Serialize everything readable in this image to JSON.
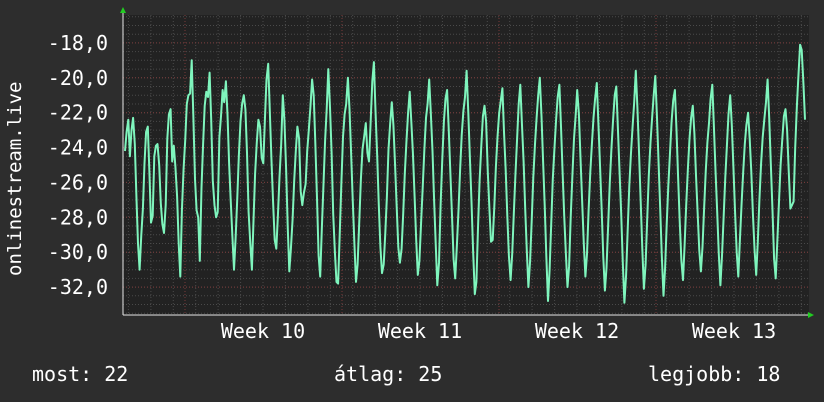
{
  "chart_data": {
    "type": "line",
    "ylabel": "onlinestream.live",
    "ylim": [
      -33.6,
      -16.4
    ],
    "yticks": [
      -18,
      -20,
      -22,
      -24,
      -26,
      -28,
      -30,
      -32
    ],
    "ytick_labels": [
      "-18,0",
      "-20,0",
      "-22,0",
      "-24,0",
      "-26,0",
      "-28,0",
      "-30,0",
      "-32,0"
    ],
    "xticks": [
      "Week 10",
      "Week 11",
      "Week 12",
      "Week 13"
    ],
    "grid": true,
    "series": [
      {
        "color": "#7ff5bd",
        "values": [
          -24.2,
          -23.1,
          -22.4,
          -24.5,
          -23.0,
          -22.3,
          -23.8,
          -26.8,
          -29.5,
          -31.0,
          -29.0,
          -27.5,
          -24.9,
          -23.1,
          -22.8,
          -25.4,
          -28.3,
          -27.9,
          -24.5,
          -23.9,
          -23.8,
          -25.0,
          -27.2,
          -28.4,
          -28.9,
          -27.3,
          -23.5,
          -22.1,
          -21.8,
          -24.8,
          -23.9,
          -25.1,
          -26.8,
          -29.5,
          -31.4,
          -27.6,
          -25.2,
          -23.6,
          -21.5,
          -21.0,
          -20.9,
          -19.0,
          -22.1,
          -25.8,
          -27.6,
          -28.0,
          -30.5,
          -26.3,
          -23.8,
          -21.6,
          -20.8,
          -21.1,
          -19.7,
          -22.4,
          -25.9,
          -27.3,
          -28.0,
          -27.7,
          -23.4,
          -22.2,
          -20.7,
          -21.4,
          -20.2,
          -22.1,
          -24.9,
          -27.0,
          -29.1,
          -31.0,
          -29.2,
          -27.0,
          -24.4,
          -22.5,
          -21.5,
          -21.0,
          -21.8,
          -24.3,
          -27.7,
          -29.5,
          -31.0,
          -28.2,
          -25.5,
          -23.7,
          -22.4,
          -22.8,
          -24.6,
          -24.9,
          -22.4,
          -20.1,
          -19.2,
          -21.9,
          -24.6,
          -27.0,
          -29.3,
          -29.8,
          -27.9,
          -25.7,
          -23.8,
          -21.0,
          -22.4,
          -25.2,
          -28.5,
          -31.1,
          -29.8,
          -28.1,
          -25.9,
          -24.2,
          -22.8,
          -23.5,
          -26.5,
          -27.3,
          -26.6,
          -26.1,
          -24.2,
          -23.0,
          -21.6,
          -20.1,
          -21.0,
          -23.7,
          -26.9,
          -30.2,
          -31.4,
          -28.7,
          -26.1,
          -23.6,
          -21.8,
          -19.5,
          -21.7,
          -24.3,
          -27.8,
          -30.0,
          -31.7,
          -31.8,
          -29.0,
          -26.0,
          -23.4,
          -22.1,
          -21.5,
          -20.0,
          -21.8,
          -24.3,
          -27.1,
          -29.5,
          -31.7,
          -30.7,
          -28.2,
          -25.8,
          -24.1,
          -23.4,
          -22.6,
          -24.3,
          -24.8,
          -22.6,
          -20.2,
          -19.1,
          -21.9,
          -24.5,
          -27.3,
          -29.7,
          -31.2,
          -30.7,
          -28.9,
          -26.8,
          -24.1,
          -22.6,
          -21.4,
          -22.7,
          -24.9,
          -27.4,
          -29.7,
          -30.6,
          -29.8,
          -27.8,
          -25.5,
          -23.7,
          -22.0,
          -20.8,
          -22.5,
          -24.3,
          -26.8,
          -29.3,
          -31.3,
          -30.5,
          -28.3,
          -26.3,
          -24.2,
          -22.3,
          -21.5,
          -20.1,
          -22.0,
          -24.2,
          -27.0,
          -29.5,
          -31.9,
          -30.6,
          -27.3,
          -24.8,
          -22.5,
          -21.2,
          -20.7,
          -22.9,
          -25.5,
          -27.9,
          -30.4,
          -31.5,
          -29.6,
          -27.6,
          -25.3,
          -23.3,
          -21.9,
          -21.1,
          -19.6,
          -22.0,
          -24.6,
          -27.1,
          -29.9,
          -32.4,
          -31.7,
          -28.6,
          -25.9,
          -23.9,
          -22.2,
          -21.6,
          -22.5,
          -25.4,
          -27.5,
          -29.4,
          -29.3,
          -27.4,
          -25.1,
          -23.4,
          -22.0,
          -21.3,
          -20.6,
          -23.1,
          -25.3,
          -27.9,
          -30.2,
          -31.6,
          -30.1,
          -27.8,
          -25.6,
          -23.5,
          -21.5,
          -20.4,
          -22.6,
          -24.8,
          -27.5,
          -29.9,
          -32.0,
          -30.5,
          -28.2,
          -25.7,
          -23.8,
          -22.3,
          -21.0,
          -20.0,
          -22.2,
          -24.8,
          -27.3,
          -30.2,
          -32.8,
          -31.0,
          -28.4,
          -25.8,
          -24.0,
          -22.4,
          -21.1,
          -20.4,
          -22.8,
          -25.4,
          -27.9,
          -30.1,
          -32.0,
          -30.8,
          -28.0,
          -25.6,
          -23.5,
          -22.2,
          -20.7,
          -22.1,
          -24.6,
          -27.0,
          -29.5,
          -31.4,
          -30.1,
          -27.6,
          -25.4,
          -23.8,
          -22.3,
          -21.2,
          -20.3,
          -22.6,
          -25.0,
          -27.6,
          -30.3,
          -32.2,
          -30.9,
          -28.4,
          -26.0,
          -24.1,
          -22.5,
          -21.0,
          -20.5,
          -22.9,
          -25.3,
          -27.8,
          -30.6,
          -32.9,
          -31.3,
          -28.7,
          -26.2,
          -24.4,
          -22.8,
          -21.4,
          -19.6,
          -21.7,
          -24.4,
          -27.1,
          -29.8,
          -32.1,
          -30.7,
          -28.1,
          -25.6,
          -23.7,
          -22.3,
          -21.0,
          -19.9,
          -22.3,
          -24.9,
          -27.5,
          -30.2,
          -32.5,
          -30.9,
          -28.4,
          -26.2,
          -24.3,
          -22.5,
          -21.3,
          -20.7,
          -23.0,
          -25.7,
          -28.2,
          -30.5,
          -31.6,
          -29.6,
          -27.3,
          -25.2,
          -23.5,
          -22.3,
          -21.6,
          -23.2,
          -25.6,
          -27.7,
          -29.9,
          -31.1,
          -29.7,
          -27.5,
          -25.3,
          -23.7,
          -22.6,
          -21.2,
          -20.4,
          -22.8,
          -25.3,
          -27.7,
          -30.1,
          -31.9,
          -30.2,
          -27.9,
          -25.7,
          -23.9,
          -22.1,
          -21.0,
          -22.7,
          -25.1,
          -27.6,
          -30.0,
          -31.4,
          -29.3,
          -27.2,
          -25.4,
          -23.8,
          -22.7,
          -22.0,
          -23.5,
          -25.4,
          -27.8,
          -29.9,
          -31.3,
          -29.4,
          -27.0,
          -24.9,
          -23.4,
          -22.4,
          -21.4,
          -20.1,
          -22.3,
          -24.9,
          -27.6,
          -30.4,
          -31.5,
          -29.4,
          -27.1,
          -25.0,
          -23.6,
          -22.2,
          -21.8,
          -23.0,
          -25.3,
          -27.5,
          -27.3,
          -27.1,
          -24.0,
          -21.6,
          -19.8,
          -18.1,
          -18.4,
          -20.3,
          -22.4
        ]
      }
    ],
    "stats": {
      "now": "most: 22",
      "avg": "átlag: 25",
      "best": "legjobb: 18"
    }
  }
}
